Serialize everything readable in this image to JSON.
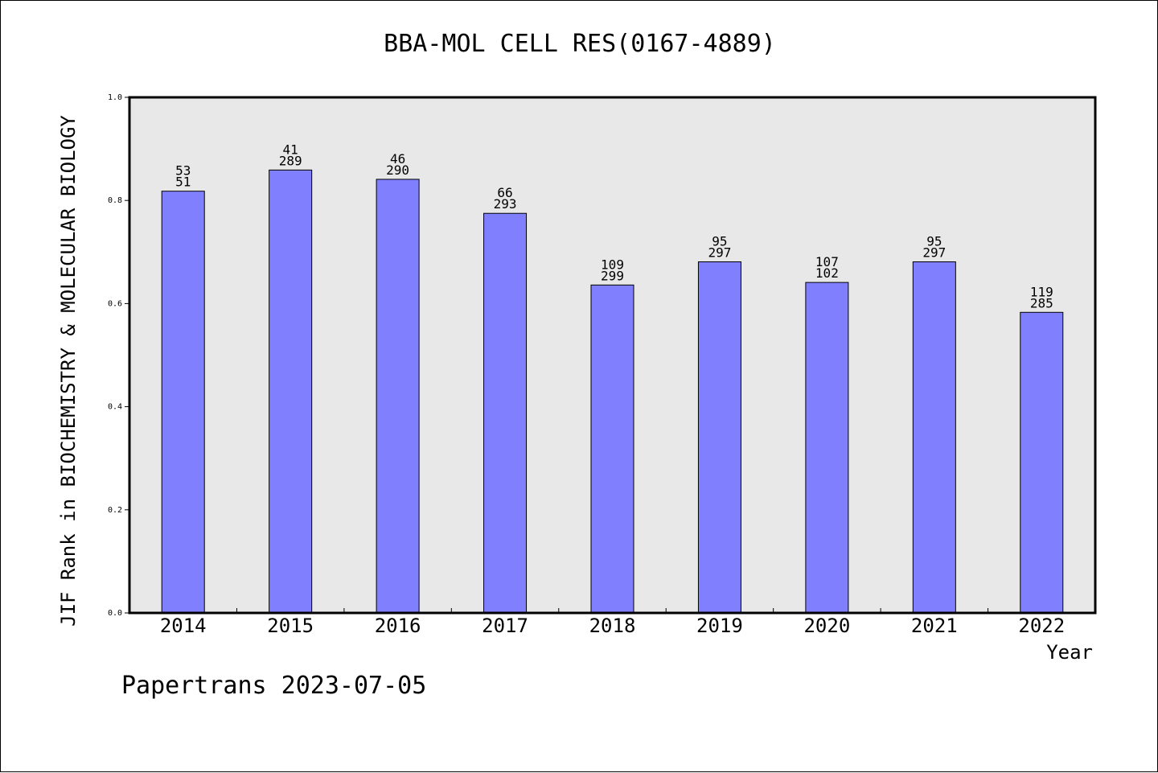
{
  "chart_data": {
    "type": "bar",
    "title": "BBA-MOL CELL RES(0167-4889)",
    "xlabel": "Year",
    "ylabel": "JIF Rank in BIOCHEMISTRY & MOLECULAR BIOLOGY",
    "ylim": [
      0.0,
      1.0
    ],
    "yticks": [
      "0.0",
      "0.2",
      "0.4",
      "0.6",
      "0.8",
      "1.0"
    ],
    "grid": false,
    "categories": [
      "2014",
      "2015",
      "2016",
      "2017",
      "2018",
      "2019",
      "2020",
      "2021",
      "2022"
    ],
    "values": [
      0.818,
      0.859,
      0.841,
      0.775,
      0.636,
      0.681,
      0.641,
      0.681,
      0.583
    ],
    "labels_top": [
      "53",
      "41",
      "46",
      "66",
      "109",
      "95",
      "107",
      "95",
      "119"
    ],
    "labels_bottom": [
      "51",
      "289",
      "290",
      "293",
      "299",
      "297",
      "102",
      "297",
      "285"
    ],
    "bar_color": "#8080ff",
    "plot_background": "#e8e8e8"
  },
  "footer": "Papertrans 2023-07-05"
}
